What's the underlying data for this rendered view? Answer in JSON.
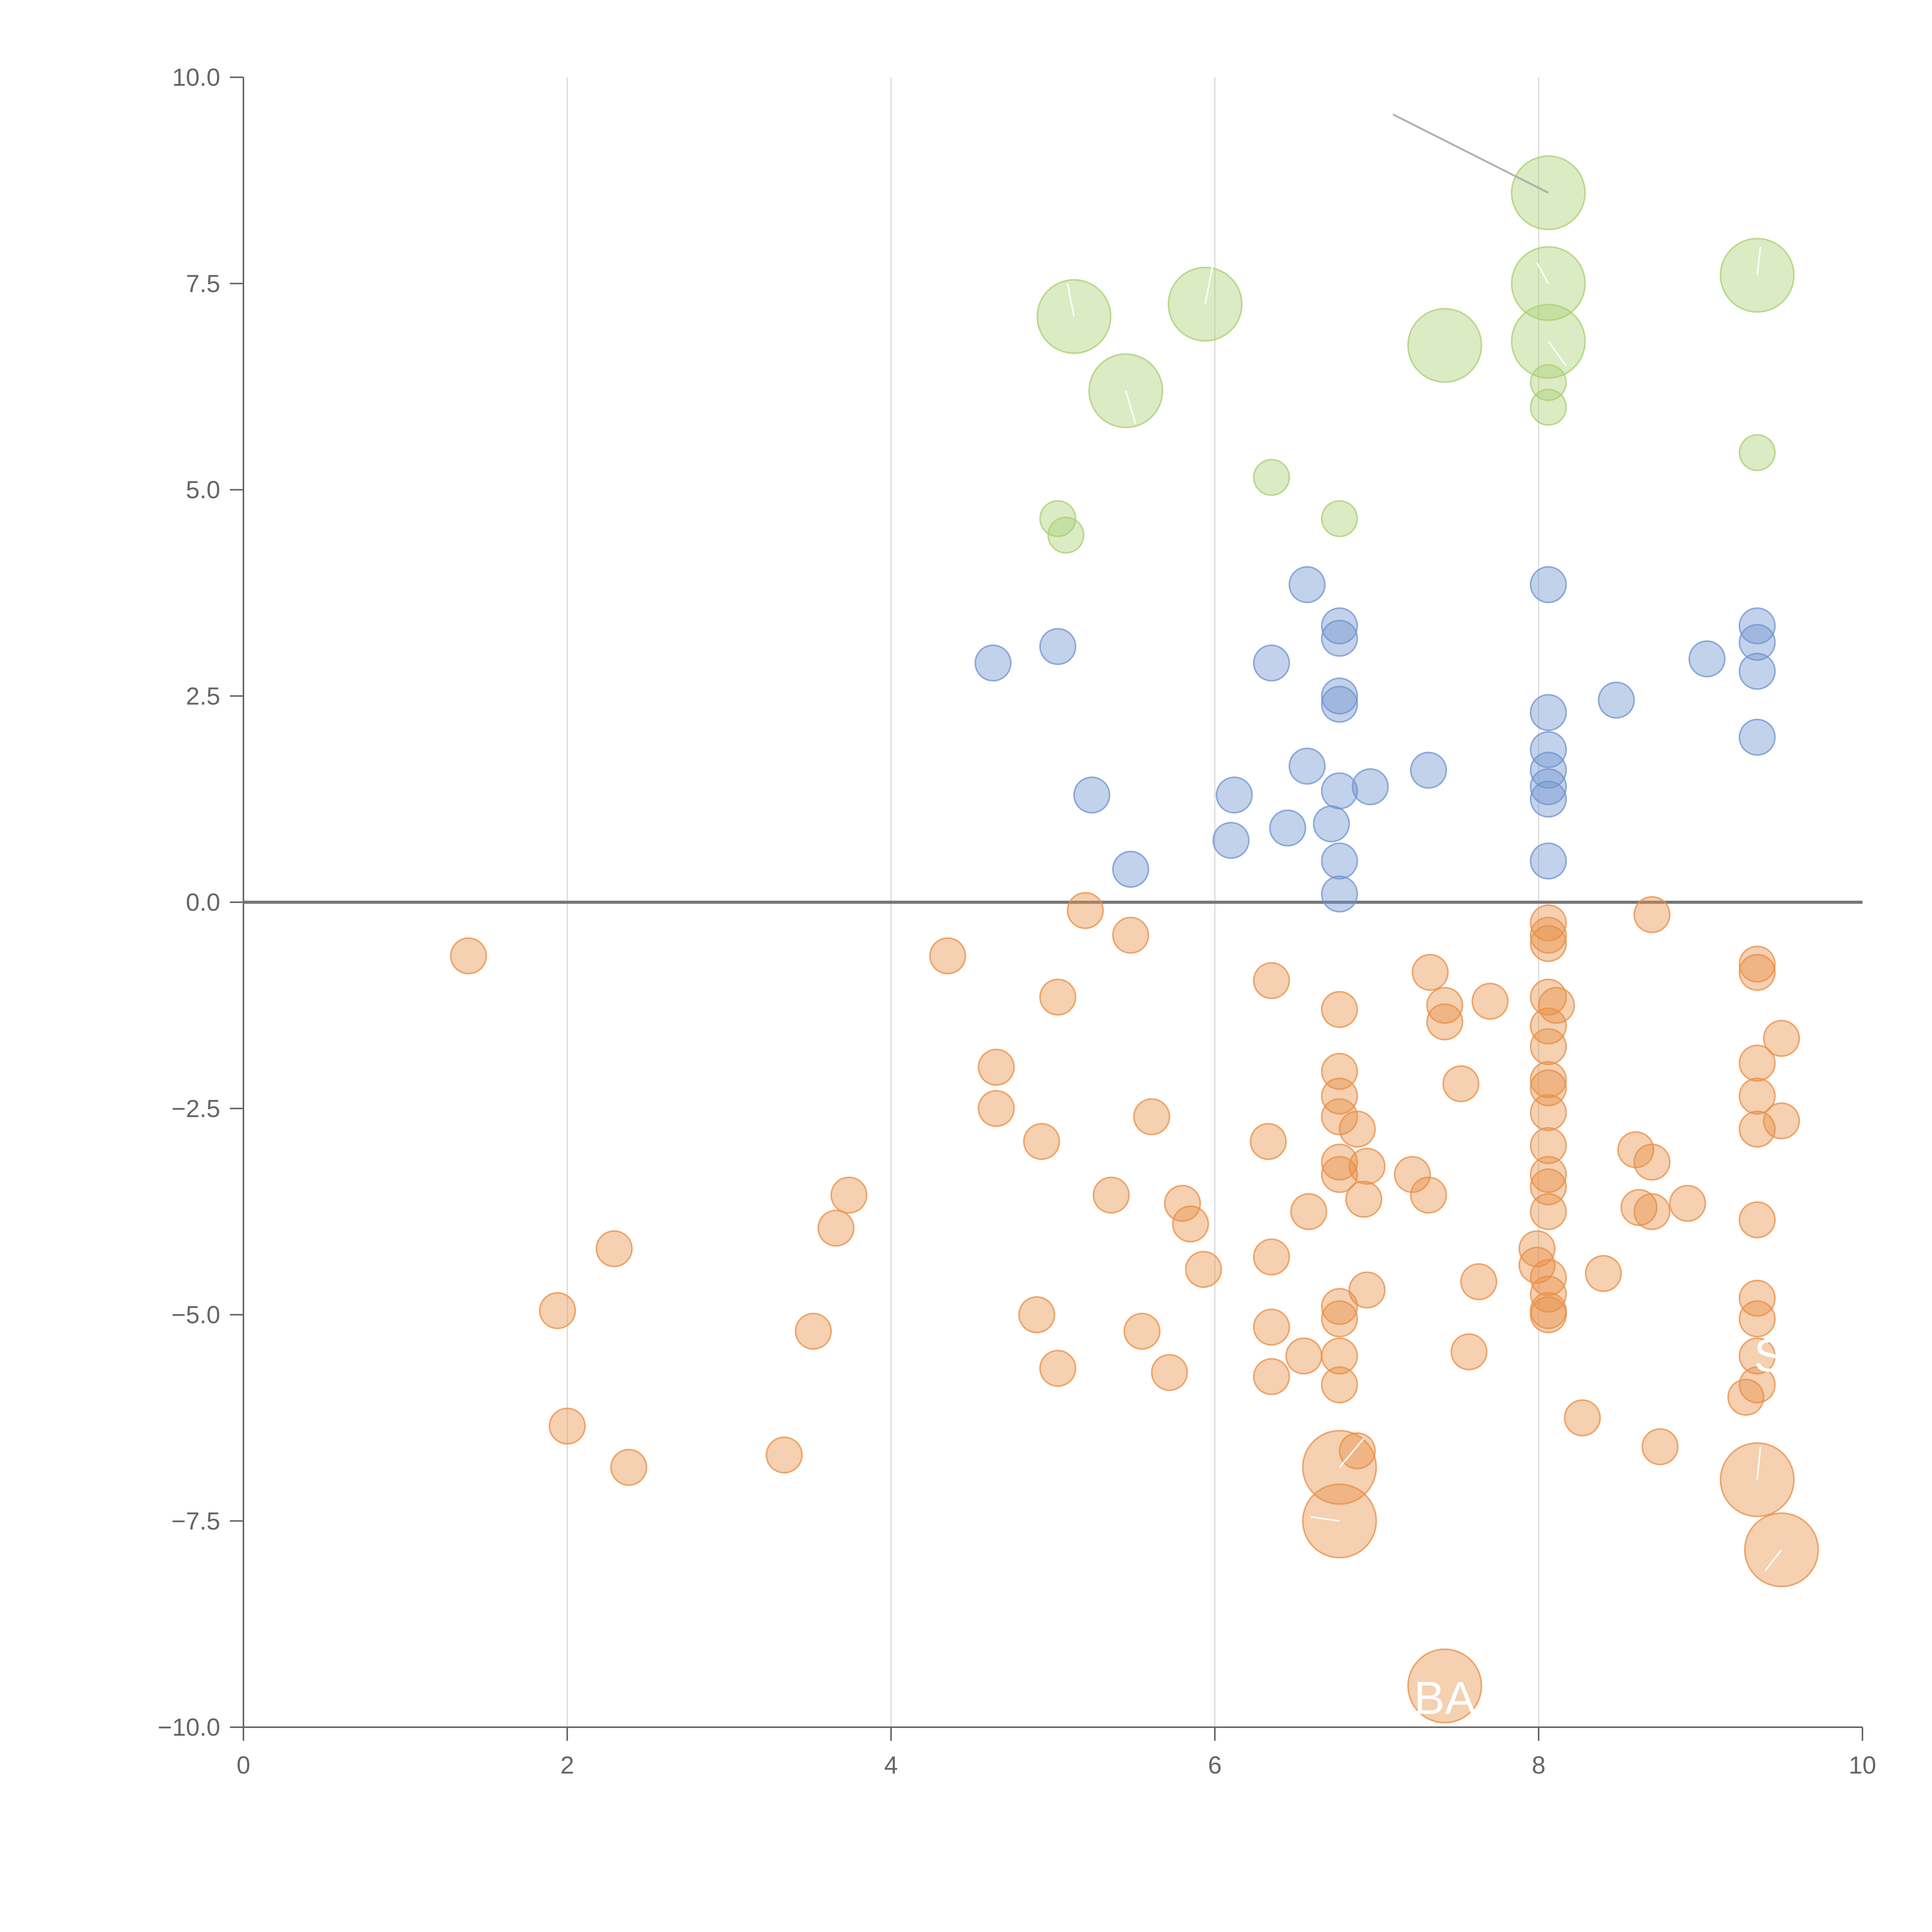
{
  "chart_data": {
    "type": "scatter",
    "title": "",
    "xlabel": "",
    "ylabel": "",
    "xlim": [
      0,
      10
    ],
    "ylim": [
      -10,
      10
    ],
    "x_ticks": [
      "0",
      "2",
      "4",
      "6",
      "8",
      "10"
    ],
    "y_ticks": [
      "10.0",
      "7.5",
      "5.0",
      "2.5",
      "0.0",
      "−2.5",
      "−5.0",
      "−7.5",
      "−10.0"
    ],
    "x_tick_values": [
      0,
      2,
      4,
      6,
      8,
      10
    ],
    "y_tick_values": [
      10,
      7.5,
      5,
      2.5,
      0,
      -2.5,
      -5,
      -7.5,
      -10
    ],
    "grid": "vertical",
    "reference_line_y": 0,
    "colors": {
      "green": "#a9cf72",
      "blue": "#6f93d0",
      "orange": "#e88f46",
      "axis": "#666666",
      "grid": "#d9d9d9",
      "zero_line": "#777777"
    },
    "series": [
      {
        "name": "green",
        "color": "#a9cf72",
        "points": [
          [
            8.06,
            8.6,
            2
          ],
          [
            9.35,
            7.6,
            2
          ],
          [
            8.06,
            7.5,
            2
          ],
          [
            5.94,
            7.25,
            2
          ],
          [
            5.13,
            7.1,
            2
          ],
          [
            8.06,
            6.8,
            2
          ],
          [
            7.42,
            6.75,
            2
          ],
          [
            5.45,
            6.2,
            2
          ],
          [
            8.06,
            6.3,
            1
          ],
          [
            8.06,
            6.0,
            1
          ],
          [
            9.35,
            5.45,
            1
          ],
          [
            6.35,
            5.15,
            1
          ],
          [
            5.03,
            4.65,
            1
          ],
          [
            5.08,
            4.45,
            1
          ],
          [
            6.77,
            4.65,
            1
          ]
        ]
      },
      {
        "name": "blue",
        "color": "#6f93d0",
        "points": [
          [
            4.63,
            2.9,
            1
          ],
          [
            5.03,
            3.1,
            1
          ],
          [
            5.24,
            1.3,
            1
          ],
          [
            5.48,
            0.4,
            1
          ],
          [
            6.1,
            0.75,
            1
          ],
          [
            6.12,
            1.3,
            1
          ],
          [
            6.35,
            2.9,
            1
          ],
          [
            6.45,
            0.9,
            1
          ],
          [
            6.57,
            3.85,
            1
          ],
          [
            6.57,
            1.65,
            1
          ],
          [
            6.72,
            0.95,
            1
          ],
          [
            6.77,
            3.35,
            1
          ],
          [
            6.77,
            3.2,
            1
          ],
          [
            6.77,
            2.5,
            1
          ],
          [
            6.77,
            2.4,
            1
          ],
          [
            6.77,
            1.35,
            1
          ],
          [
            6.77,
            0.5,
            1
          ],
          [
            6.77,
            0.1,
            1
          ],
          [
            6.96,
            1.4,
            1
          ],
          [
            7.32,
            1.6,
            1
          ],
          [
            8.06,
            3.85,
            1
          ],
          [
            8.06,
            2.3,
            1
          ],
          [
            8.06,
            1.85,
            1
          ],
          [
            8.06,
            1.6,
            1
          ],
          [
            8.06,
            1.4,
            1
          ],
          [
            8.06,
            1.25,
            1
          ],
          [
            8.06,
            0.5,
            1
          ],
          [
            8.48,
            2.45,
            1
          ],
          [
            9.04,
            2.95,
            1
          ],
          [
            9.35,
            3.35,
            1
          ],
          [
            9.35,
            3.15,
            1
          ],
          [
            9.35,
            2.8,
            1
          ],
          [
            9.35,
            2.0,
            1
          ]
        ]
      },
      {
        "name": "orange",
        "color": "#e88f46",
        "points": [
          [
            1.39,
            -0.65,
            1
          ],
          [
            1.94,
            -4.95,
            1
          ],
          [
            2.0,
            -6.35,
            1
          ],
          [
            2.29,
            -4.2,
            1
          ],
          [
            2.38,
            -6.85,
            1
          ],
          [
            3.34,
            -6.7,
            1
          ],
          [
            3.52,
            -5.2,
            1
          ],
          [
            3.66,
            -3.95,
            1
          ],
          [
            3.74,
            -3.55,
            1
          ],
          [
            4.35,
            -0.65,
            1
          ],
          [
            4.65,
            -2.0,
            1
          ],
          [
            4.65,
            -2.5,
            1
          ],
          [
            4.9,
            -5.0,
            1
          ],
          [
            4.93,
            -2.9,
            1
          ],
          [
            5.03,
            -1.15,
            1
          ],
          [
            5.03,
            -5.65,
            1
          ],
          [
            5.2,
            -0.1,
            1
          ],
          [
            5.36,
            -3.55,
            1
          ],
          [
            5.48,
            -0.4,
            1
          ],
          [
            5.55,
            -5.2,
            1
          ],
          [
            5.61,
            -2.6,
            1
          ],
          [
            5.72,
            -5.7,
            1
          ],
          [
            5.8,
            -3.65,
            1
          ],
          [
            5.85,
            -3.9,
            1
          ],
          [
            5.93,
            -4.45,
            1
          ],
          [
            6.35,
            -0.95,
            1
          ],
          [
            6.33,
            -2.9,
            1
          ],
          [
            6.35,
            -4.3,
            1
          ],
          [
            6.35,
            -5.15,
            1
          ],
          [
            6.35,
            -5.75,
            1
          ],
          [
            6.55,
            -5.5,
            1
          ],
          [
            6.58,
            -3.75,
            1
          ],
          [
            6.77,
            -1.3,
            1
          ],
          [
            6.77,
            -2.05,
            1
          ],
          [
            6.77,
            -2.35,
            1
          ],
          [
            6.77,
            -2.6,
            1
          ],
          [
            6.77,
            -3.15,
            1
          ],
          [
            6.77,
            -3.3,
            1
          ],
          [
            6.77,
            -4.9,
            1
          ],
          [
            6.77,
            -5.05,
            1
          ],
          [
            6.77,
            -5.5,
            1
          ],
          [
            6.77,
            -5.85,
            1
          ],
          [
            6.88,
            -2.75,
            1
          ],
          [
            6.92,
            -3.6,
            1
          ],
          [
            6.94,
            -3.2,
            1
          ],
          [
            6.94,
            -4.7,
            1
          ],
          [
            6.88,
            -6.65,
            1
          ],
          [
            7.22,
            -3.3,
            1
          ],
          [
            7.33,
            -0.85,
            1
          ],
          [
            7.32,
            -3.55,
            1
          ],
          [
            7.42,
            -1.25,
            1
          ],
          [
            7.42,
            -1.45,
            1
          ],
          [
            7.52,
            -2.2,
            1
          ],
          [
            7.57,
            -5.45,
            1
          ],
          [
            7.63,
            -4.6,
            1
          ],
          [
            7.7,
            -1.2,
            1
          ],
          [
            7.99,
            -4.2,
            1
          ],
          [
            7.99,
            -4.4,
            1
          ],
          [
            8.06,
            -0.25,
            1
          ],
          [
            8.06,
            -0.4,
            1
          ],
          [
            8.06,
            -0.5,
            1
          ],
          [
            8.06,
            -1.15,
            1
          ],
          [
            8.06,
            -1.5,
            1
          ],
          [
            8.06,
            -1.75,
            1
          ],
          [
            8.06,
            -2.15,
            1
          ],
          [
            8.06,
            -2.25,
            1
          ],
          [
            8.06,
            -2.55,
            1
          ],
          [
            8.06,
            -2.95,
            1
          ],
          [
            8.06,
            -3.3,
            1
          ],
          [
            8.06,
            -3.45,
            1
          ],
          [
            8.06,
            -3.75,
            1
          ],
          [
            8.06,
            -4.55,
            1
          ],
          [
            8.06,
            -4.75,
            1
          ],
          [
            8.06,
            -4.95,
            1
          ],
          [
            8.06,
            -5.0,
            1
          ],
          [
            8.11,
            -1.25,
            1
          ],
          [
            8.27,
            -6.25,
            1
          ],
          [
            8.4,
            -4.5,
            1
          ],
          [
            8.6,
            -3.0,
            1
          ],
          [
            8.62,
            -3.7,
            1
          ],
          [
            8.7,
            -0.15,
            1
          ],
          [
            8.7,
            -3.15,
            1
          ],
          [
            8.7,
            -3.75,
            1
          ],
          [
            8.75,
            -6.6,
            1
          ],
          [
            8.92,
            -3.65,
            1
          ],
          [
            9.28,
            -6.0,
            1
          ],
          [
            9.35,
            -0.75,
            1
          ],
          [
            9.35,
            -0.85,
            1
          ],
          [
            9.35,
            -1.95,
            1
          ],
          [
            9.35,
            -2.35,
            1
          ],
          [
            9.35,
            -2.75,
            1
          ],
          [
            9.35,
            -3.85,
            1
          ],
          [
            9.35,
            -4.8,
            1
          ],
          [
            9.35,
            -5.05,
            1
          ],
          [
            9.35,
            -5.5,
            1
          ],
          [
            9.35,
            -5.85,
            1
          ],
          [
            9.5,
            -1.65,
            1
          ],
          [
            9.5,
            -2.65,
            1
          ],
          [
            6.77,
            -6.85,
            2
          ],
          [
            6.77,
            -7.5,
            2
          ],
          [
            9.35,
            -7.0,
            2
          ],
          [
            9.5,
            -7.85,
            2
          ],
          [
            7.42,
            -9.5,
            2
          ]
        ]
      }
    ],
    "annotations": [
      {
        "text": "BA",
        "x": 7.42,
        "y": -9.5,
        "label_x": 7.42,
        "label_y": -9.65,
        "leader": false
      },
      {
        "text": "SK",
        "x": 9.35,
        "y": -5.5,
        "label_x": 9.52,
        "label_y": -5.5,
        "leader": false
      }
    ],
    "leader_lines": [
      [
        7.1,
        9.55,
        8.06,
        8.6
      ],
      [
        5.13,
        7.1,
        5.09,
        7.5
      ],
      [
        5.94,
        7.25,
        5.99,
        7.75
      ],
      [
        5.45,
        6.2,
        5.51,
        5.8
      ],
      [
        8.06,
        7.5,
        7.99,
        7.75
      ],
      [
        8.06,
        6.8,
        8.17,
        6.5
      ],
      [
        9.35,
        7.6,
        9.37,
        7.95
      ],
      [
        6.77,
        -6.85,
        6.92,
        -6.5
      ],
      [
        6.77,
        -7.5,
        6.59,
        -7.45
      ],
      [
        9.35,
        -7.0,
        9.37,
        -6.6
      ],
      [
        9.5,
        -7.85,
        9.4,
        -8.1
      ]
    ]
  }
}
